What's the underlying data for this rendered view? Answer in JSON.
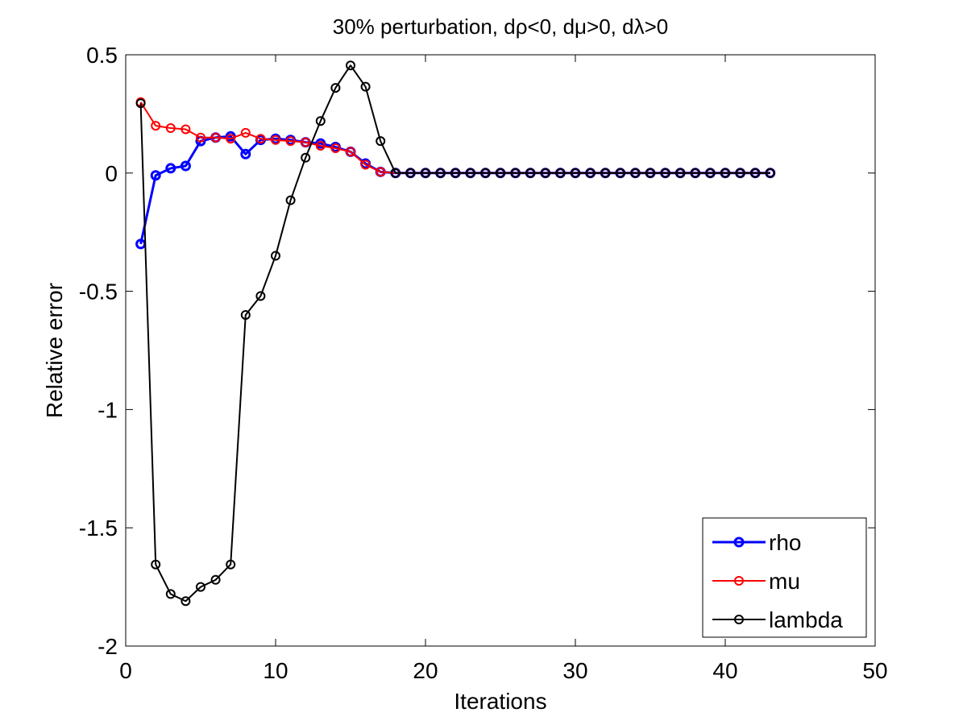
{
  "chart_data": {
    "type": "line",
    "title": "30% perturbation, dρ<0, dμ>0, dλ>0",
    "xlabel": "Iterations",
    "ylabel": "Relative error",
    "xlim": [
      0,
      50
    ],
    "ylim": [
      -2,
      0.5
    ],
    "xticks": [
      0,
      10,
      20,
      30,
      40,
      50
    ],
    "yticks": [
      -2,
      -1.5,
      -1,
      -0.5,
      0,
      0.5
    ],
    "xtick_labels": [
      "0",
      "10",
      "20",
      "30",
      "40",
      "50"
    ],
    "ytick_labels": [
      "-2",
      "-1.5",
      "-1",
      "-0.5",
      "0",
      "0.5"
    ],
    "grid": false,
    "legend_position": "bottom-right",
    "x": [
      1,
      2,
      3,
      4,
      5,
      6,
      7,
      8,
      9,
      10,
      11,
      12,
      13,
      14,
      15,
      16,
      17,
      18,
      19,
      20,
      21,
      22,
      23,
      24,
      25,
      26,
      27,
      28,
      29,
      30,
      31,
      32,
      33,
      34,
      35,
      36,
      37,
      38,
      39,
      40,
      41,
      42,
      43
    ],
    "series": [
      {
        "name": "rho",
        "color": "#0000ff",
        "line_width": 3,
        "marker": "circle",
        "values": [
          -0.3,
          -0.01,
          0.02,
          0.03,
          0.135,
          0.15,
          0.155,
          0.08,
          0.14,
          0.145,
          0.14,
          0.13,
          0.125,
          0.11,
          0.09,
          0.04,
          0.005,
          0.0,
          0,
          0,
          0,
          0,
          0,
          0,
          0,
          0,
          0,
          0,
          0,
          0,
          0,
          0,
          0,
          0,
          0,
          0,
          0,
          0,
          0,
          0,
          0,
          0,
          0
        ]
      },
      {
        "name": "mu",
        "color": "#ff0000",
        "line_width": 2,
        "marker": "circle",
        "values": [
          0.3,
          0.2,
          0.19,
          0.185,
          0.15,
          0.15,
          0.145,
          0.17,
          0.145,
          0.14,
          0.135,
          0.13,
          0.115,
          0.105,
          0.09,
          0.035,
          0.005,
          0.0,
          0,
          0,
          0,
          0,
          0,
          0,
          0,
          0,
          0,
          0,
          0,
          0,
          0,
          0,
          0,
          0,
          0,
          0,
          0,
          0,
          0,
          0,
          0,
          0,
          0
        ]
      },
      {
        "name": "lambda",
        "color": "#000000",
        "line_width": 2,
        "marker": "circle",
        "values": [
          0.295,
          -1.655,
          -1.78,
          -1.81,
          -1.75,
          -1.72,
          -1.655,
          -0.6,
          -0.52,
          -0.35,
          -0.115,
          0.065,
          0.22,
          0.36,
          0.455,
          0.365,
          0.135,
          0.0,
          0,
          0,
          0,
          0,
          0,
          0,
          0,
          0,
          0,
          0,
          0,
          0,
          0,
          0,
          0,
          0,
          0,
          0,
          0,
          0,
          0,
          0,
          0,
          0,
          0
        ]
      }
    ]
  }
}
